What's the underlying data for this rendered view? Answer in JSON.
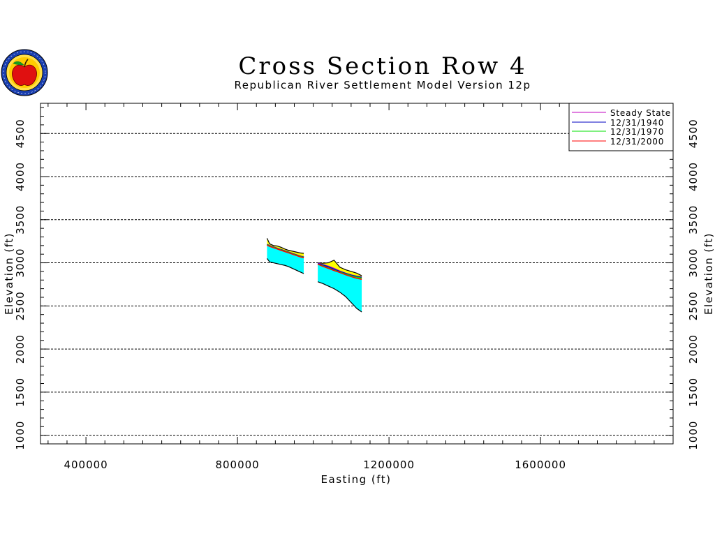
{
  "chart_data": {
    "type": "area",
    "title": "Cross Section Row 4",
    "subtitle": "Republican River Settlement Model Version 12p",
    "xlabel": "Easting (ft)",
    "ylabel": "Elevation (ft)",
    "xlim": [
      280000,
      1950000
    ],
    "ylim": [
      900,
      4850
    ],
    "x_ticks": [
      400000,
      800000,
      1200000,
      1600000
    ],
    "x_tick_labels": [
      "400000",
      "800000",
      "1200000",
      "1600000"
    ],
    "y_ticks": [
      1000,
      1500,
      2000,
      2500,
      3000,
      3500,
      4000,
      4500
    ],
    "y_tick_labels": [
      "1000",
      "1500",
      "2000",
      "2500",
      "3000",
      "3500",
      "4000",
      "4500"
    ],
    "grid": "horizontal dashed",
    "legend_placement": "top-right",
    "legend": [
      {
        "name": "Steady State",
        "color": "#c000c0"
      },
      {
        "name": "12/31/1940",
        "color": "#0000c0"
      },
      {
        "name": "12/31/1970",
        "color": "#00e000"
      },
      {
        "name": "12/31/2000",
        "color": "#ff0000"
      }
    ],
    "aquifer_color": "#00ffff",
    "unsaturated_color": "#ffff00",
    "segments": [
      {
        "x": [
          878000,
          885000,
          895000,
          905000,
          915000,
          925000,
          935000,
          945000,
          955000,
          965000,
          975000
        ],
        "land_surface": [
          3285,
          3220,
          3200,
          3195,
          3180,
          3160,
          3145,
          3135,
          3125,
          3115,
          3110
        ],
        "aquifer_base": [
          3050,
          3010,
          3000,
          2990,
          2980,
          2970,
          2955,
          2935,
          2915,
          2895,
          2875
        ],
        "steady_state": [
          3215,
          3200,
          3185,
          3170,
          3155,
          3140,
          3125,
          3110,
          3095,
          3080,
          3068
        ],
        "1940": [
          3213,
          3198,
          3183,
          3168,
          3153,
          3138,
          3123,
          3108,
          3093,
          3078,
          3066
        ],
        "1970": [
          3210,
          3195,
          3180,
          3165,
          3150,
          3135,
          3120,
          3105,
          3090,
          3075,
          3063
        ],
        "2000": [
          3205,
          3190,
          3175,
          3160,
          3145,
          3130,
          3115,
          3100,
          3085,
          3070,
          3058
        ]
      },
      {
        "x": [
          1012000,
          1025000,
          1040000,
          1055000,
          1070000,
          1085000,
          1100000,
          1115000,
          1128000
        ],
        "land_surface": [
          3000,
          2995,
          3000,
          3030,
          2950,
          2920,
          2900,
          2880,
          2850
        ],
        "aquifer_base": [
          2780,
          2760,
          2730,
          2700,
          2660,
          2610,
          2540,
          2470,
          2430
        ],
        "steady_state": [
          2995,
          2980,
          2960,
          2935,
          2905,
          2880,
          2860,
          2845,
          2835
        ],
        "1940": [
          2990,
          2975,
          2953,
          2925,
          2900,
          2877,
          2857,
          2842,
          2832
        ],
        "1970": [
          2986,
          2965,
          2940,
          2915,
          2893,
          2870,
          2850,
          2833,
          2822
        ],
        "2000": [
          2984,
          2960,
          2935,
          2910,
          2888,
          2862,
          2840,
          2820,
          2808
        ]
      }
    ]
  }
}
